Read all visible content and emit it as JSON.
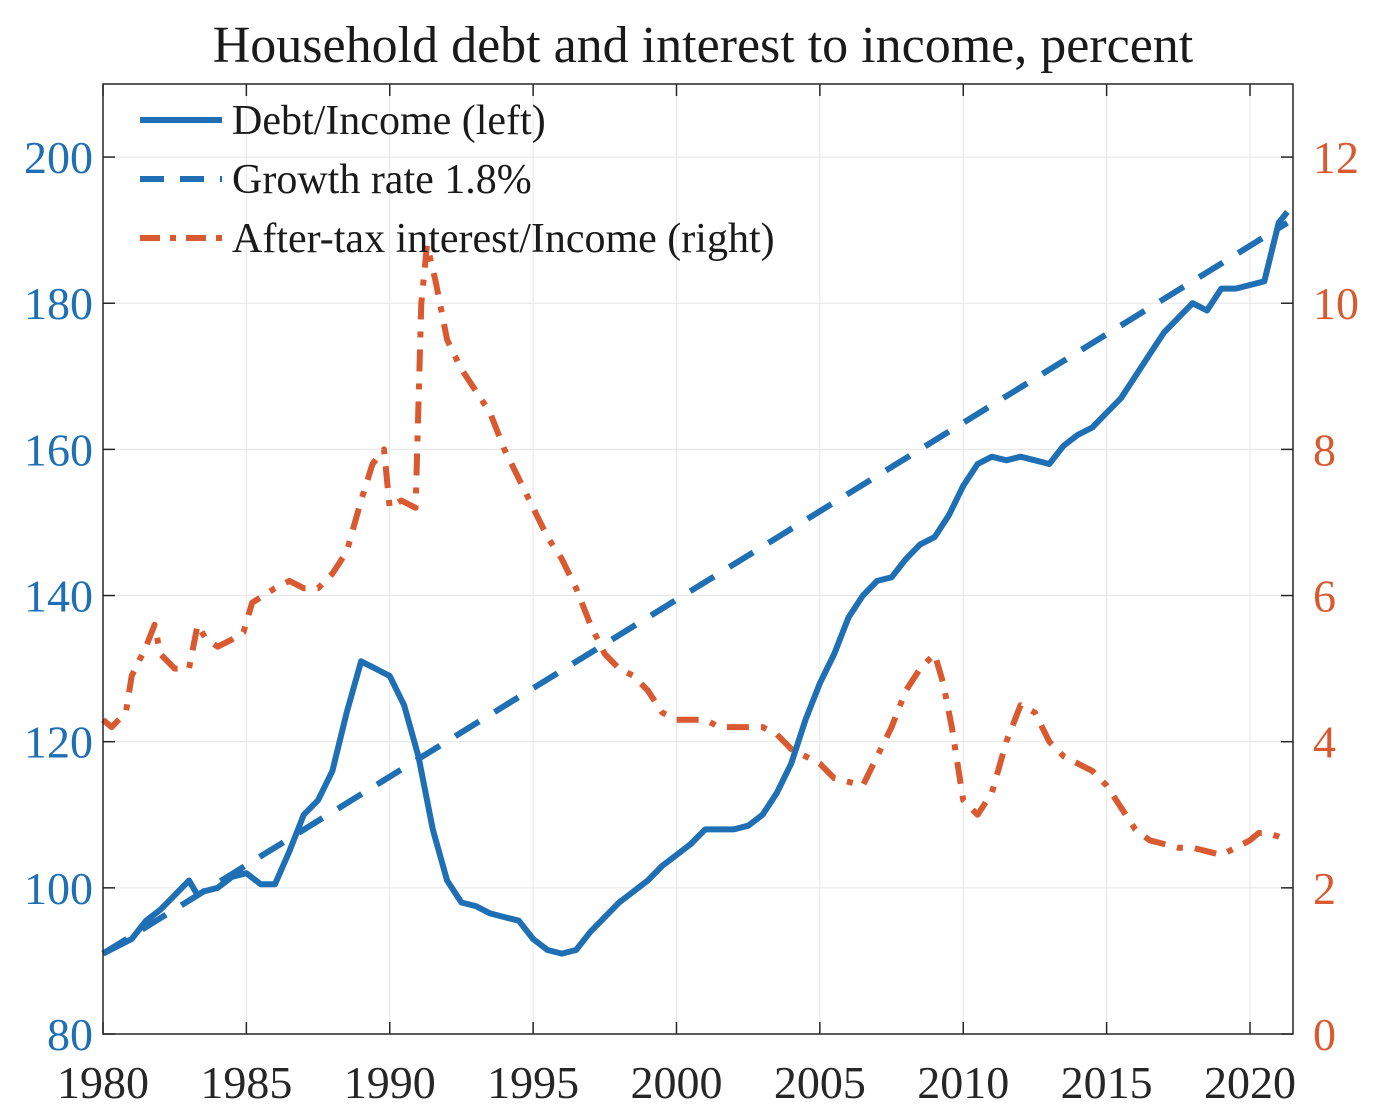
{
  "chart_data": {
    "type": "line",
    "title": "Household debt and interest to income, percent",
    "xlabel": "",
    "ylabel_left": "",
    "ylabel_right": "",
    "xlim": [
      1980,
      2021.5
    ],
    "ylim_left": [
      80,
      210
    ],
    "ylim_right": [
      0,
      13
    ],
    "grid": true,
    "legend_position": "top-left",
    "x_ticks": [
      1980,
      1985,
      1990,
      1995,
      2000,
      2005,
      2010,
      2015,
      2020
    ],
    "x_tick_labels": [
      "1980",
      "1985",
      "1990",
      "1995",
      "2000",
      "2005",
      "2010",
      "2015",
      "2020"
    ],
    "y_left_ticks": [
      80,
      100,
      120,
      140,
      160,
      180,
      200
    ],
    "y_left_tick_labels": [
      "80",
      "100",
      "120",
      "140",
      "160",
      "180",
      "200"
    ],
    "y_right_ticks": [
      0,
      2,
      4,
      6,
      8,
      10,
      12
    ],
    "y_right_tick_labels": [
      "0",
      "2",
      "4",
      "6",
      "8",
      "10",
      "12"
    ],
    "colors": {
      "blue": "#1f6fb4",
      "orange": "#d95a30",
      "axis": "#262626"
    },
    "series": [
      {
        "name": "Debt/Income (left)",
        "axis": "left",
        "style": "solid",
        "color": "#1f6fb4",
        "x": [
          1980,
          1980.5,
          1981,
          1981.5,
          1982,
          1982.5,
          1983,
          1983.3,
          1983.5,
          1984,
          1984.5,
          1985,
          1985.5,
          1986,
          1986.5,
          1987,
          1987.5,
          1988,
          1988.5,
          1989,
          1989.5,
          1990,
          1990.5,
          1991,
          1991.5,
          1992,
          1992.5,
          1993,
          1993.5,
          1994,
          1994.5,
          1995,
          1995.5,
          1996,
          1996.5,
          1997,
          1997.5,
          1998,
          1998.5,
          1999,
          1999.5,
          2000,
          2000.5,
          2001,
          2001.5,
          2002,
          2002.5,
          2003,
          2003.5,
          2004,
          2004.5,
          2005,
          2005.5,
          2006,
          2006.5,
          2007,
          2007.5,
          2008,
          2008.5,
          2009,
          2009.5,
          2010,
          2010.5,
          2011,
          2011.5,
          2012,
          2012.5,
          2013,
          2013.5,
          2014,
          2014.5,
          2015,
          2015.5,
          2016,
          2016.5,
          2017,
          2017.5,
          2018,
          2018.5,
          2019,
          2019.5,
          2020,
          2020.5,
          2021,
          2021.3
        ],
        "values": [
          91,
          92,
          93,
          95.5,
          97,
          99,
          101,
          99,
          99.5,
          100,
          101.5,
          102,
          100.5,
          100.5,
          105,
          110,
          112,
          116,
          124,
          131,
          130,
          129,
          125,
          118,
          108,
          101,
          98,
          97.5,
          96.5,
          96,
          95.5,
          93,
          91.5,
          91,
          91.5,
          94,
          96,
          98,
          99.5,
          101,
          103,
          104.5,
          106,
          108,
          108,
          108,
          108.5,
          110,
          113,
          117,
          123,
          128,
          132,
          137,
          140,
          142,
          142.5,
          145,
          147,
          148,
          151,
          155,
          158,
          159,
          158.5,
          159,
          158.5,
          158,
          160.5,
          162,
          163,
          165,
          167,
          170,
          173,
          176,
          178,
          180,
          179,
          182,
          182,
          182.5,
          183,
          191,
          192.5
        ]
      },
      {
        "name": "Growth rate 1.8%",
        "axis": "left",
        "style": "dashed",
        "color": "#1f6fb4",
        "x": [
          1980,
          2021.3
        ],
        "values": [
          91,
          191
        ]
      },
      {
        "name": "After-tax interest/Income (right)",
        "axis": "right",
        "style": "dashdot",
        "color": "#d95a30",
        "x": [
          1980,
          1980.3,
          1980.8,
          1981,
          1981.5,
          1981.8,
          1982,
          1982.5,
          1983,
          1983.3,
          1983.6,
          1984,
          1984.5,
          1984.9,
          1985.2,
          1985.6,
          1986,
          1986.5,
          1987,
          1987.5,
          1988,
          1988.5,
          1989,
          1989.4,
          1989.8,
          1990,
          1990.4,
          1990.9,
          1991.1,
          1991.3,
          1991.6,
          1992,
          1992.5,
          1993,
          1993.5,
          1994,
          1994.5,
          1995,
          1995.5,
          1996,
          1996.5,
          1997,
          1997.5,
          1998,
          1998.5,
          1999,
          1999.5,
          2000,
          2000.5,
          2001,
          2001.5,
          2002,
          2002.5,
          2003,
          2003.5,
          2004,
          2004.5,
          2005,
          2005.5,
          2006,
          2006.5,
          2007,
          2007.5,
          2008,
          2008.5,
          2009,
          2009.3,
          2009.6,
          2010,
          2010.5,
          2011,
          2011.5,
          2012,
          2012.5,
          2013,
          2013.5,
          2014,
          2014.5,
          2015,
          2015.5,
          2016,
          2016.5,
          2017,
          2017.5,
          2018,
          2018.5,
          2019,
          2019.5,
          2020,
          2020.3,
          2020.6,
          2021,
          2021.3
        ],
        "values": [
          4.3,
          4.2,
          4.4,
          4.9,
          5.3,
          5.6,
          5.2,
          5.0,
          5.0,
          5.6,
          5.4,
          5.3,
          5.4,
          5.5,
          5.9,
          6.0,
          6.1,
          6.2,
          6.1,
          6.1,
          6.3,
          6.6,
          7.3,
          7.8,
          8.0,
          7.2,
          7.3,
          7.2,
          10.0,
          10.8,
          10.3,
          9.5,
          9.1,
          8.8,
          8.5,
          8.0,
          7.6,
          7.2,
          6.8,
          6.5,
          6.1,
          5.6,
          5.2,
          5.0,
          4.9,
          4.7,
          4.4,
          4.3,
          4.3,
          4.3,
          4.2,
          4.2,
          4.2,
          4.2,
          4.1,
          3.9,
          3.8,
          3.7,
          3.5,
          3.45,
          3.4,
          3.8,
          4.2,
          4.7,
          5.0,
          5.2,
          4.8,
          4.2,
          3.2,
          3.0,
          3.3,
          4.0,
          4.5,
          4.4,
          4.0,
          3.8,
          3.7,
          3.6,
          3.4,
          3.1,
          2.8,
          2.65,
          2.6,
          2.55,
          2.55,
          2.5,
          2.45,
          2.55,
          2.65,
          2.75,
          2.75,
          2.7,
          2.65
        ]
      }
    ]
  }
}
